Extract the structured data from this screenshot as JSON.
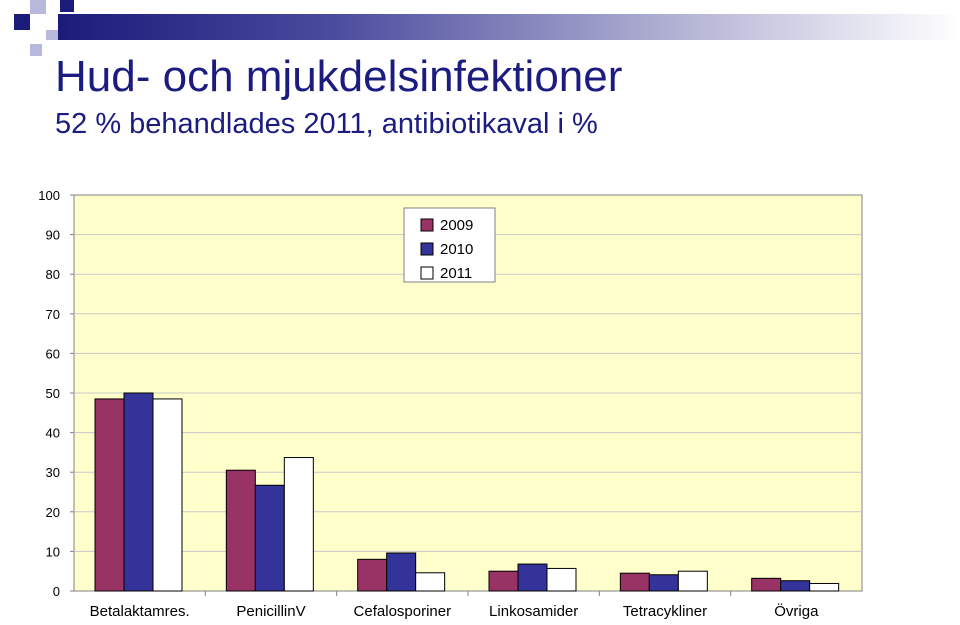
{
  "slide": {
    "title": "Hud- och mjukdelsinfektioner",
    "subtitle": "52 % behandlades 2011, antibiotikaval i %"
  },
  "colors": {
    "header_dark": "#1b1b7a",
    "plot_background": "#ffffcc",
    "series_2009": "#993366",
    "series_2010": "#333399",
    "series_2011": "#ffffff"
  },
  "chart_data": {
    "type": "bar",
    "categories": [
      "Betalaktamres.",
      "PenicillinV",
      "Cefalosporiner",
      "Linkosamider",
      "Tetracykliner",
      "Övriga"
    ],
    "series": [
      {
        "name": "2009",
        "values": [
          48.5,
          30.5,
          8,
          5,
          4.5,
          3.2
        ]
      },
      {
        "name": "2010",
        "values": [
          50,
          26.7,
          9.6,
          6.8,
          4.1,
          2.6
        ]
      },
      {
        "name": "2011",
        "values": [
          48.5,
          33.7,
          4.6,
          5.7,
          5,
          1.9
        ]
      }
    ],
    "ylim": [
      0,
      100
    ],
    "yticks": [
      "0",
      "10",
      "20",
      "30",
      "40",
      "50",
      "60",
      "70",
      "80",
      "90",
      "100"
    ],
    "grid": true,
    "legend_position": "top-center"
  }
}
